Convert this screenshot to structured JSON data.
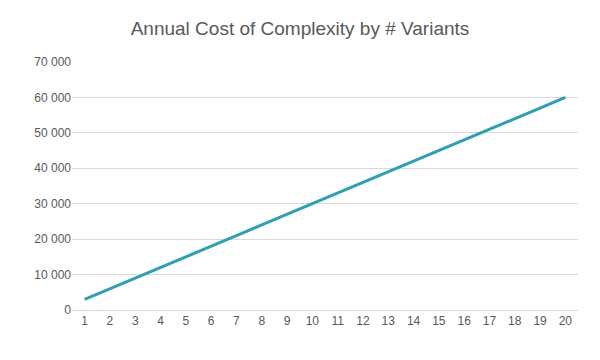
{
  "chart_data": {
    "type": "line",
    "title": "Annual Cost of Complexity by # Variants",
    "categories": [
      "1",
      "2",
      "3",
      "4",
      "5",
      "6",
      "7",
      "8",
      "9",
      "10",
      "11",
      "12",
      "13",
      "14",
      "15",
      "16",
      "17",
      "18",
      "19",
      "20"
    ],
    "values": [
      3000,
      6000,
      9000,
      12000,
      15000,
      18000,
      21000,
      24000,
      27000,
      30000,
      33000,
      36000,
      39000,
      42000,
      45000,
      48000,
      51000,
      54000,
      57000,
      60000
    ],
    "color": "#2f9fb1",
    "ylim": [
      0,
      70000
    ],
    "yticks": [
      0,
      {
        "value": 10000,
        "label": "10 000"
      },
      {
        "value": 20000,
        "label": "20 000"
      },
      {
        "value": 30000,
        "label": "30 000"
      },
      {
        "value": 40000,
        "label": "40 000"
      },
      {
        "value": 50000,
        "label": "50 000"
      },
      {
        "value": 60000,
        "label": "60 000"
      },
      {
        "value": 70000,
        "label": "70 000"
      }
    ],
    "grid": true
  }
}
